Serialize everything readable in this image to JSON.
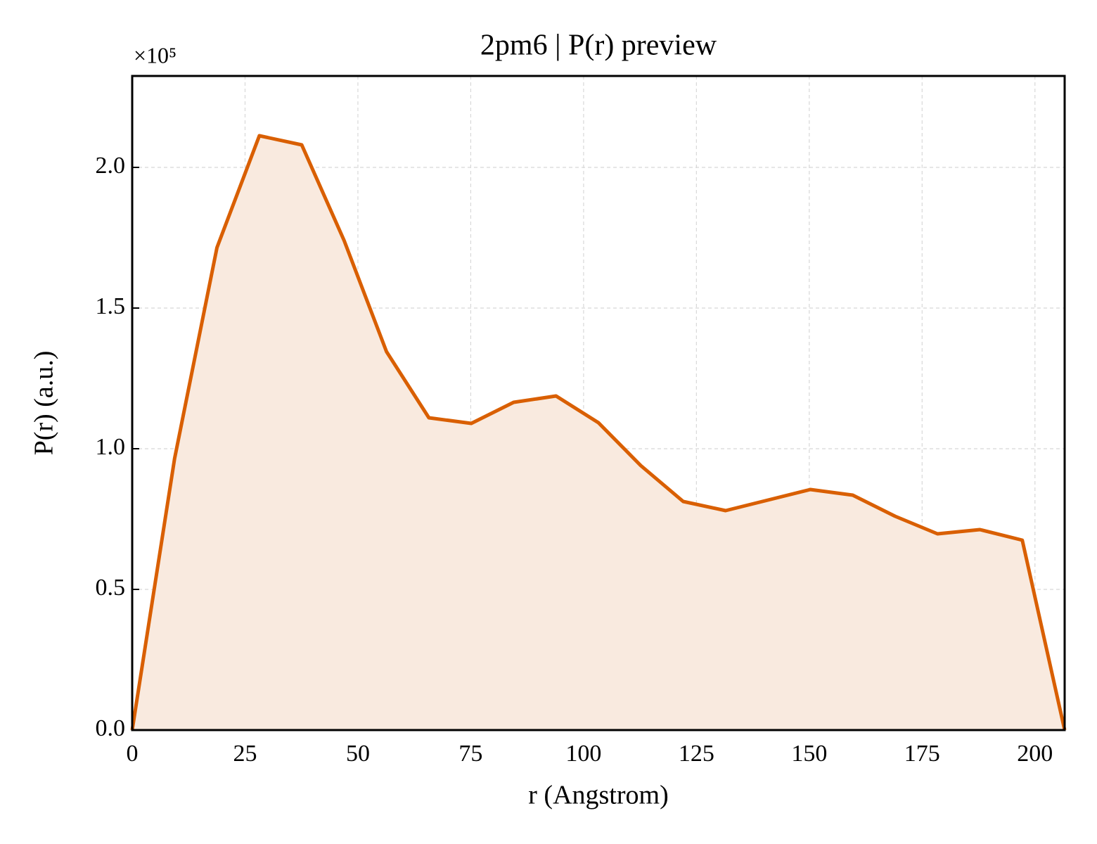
{
  "chart_data": {
    "type": "area",
    "title": "2pm6 | P(r) preview",
    "x_label": "r (Angstrom)",
    "y_label": "P(r) (a.u.)",
    "y_offset_label": "×10⁵",
    "x": [
      0,
      9.39,
      18.78,
      28.17,
      37.56,
      46.95,
      56.34,
      65.73,
      75.12,
      84.51,
      93.9,
      103.29,
      112.68,
      122.07,
      131.46,
      140.85,
      150.24,
      159.63,
      169.02,
      178.41,
      187.8,
      197.19,
      206.58
    ],
    "series": [
      {
        "name": "P(r)",
        "color": "#d95f02",
        "fill_color": "#f9eadf",
        "values": [
          0,
          0.965,
          1.715,
          2.1125,
          2.08,
          1.74,
          1.345,
          1.11,
          1.09,
          1.165,
          1.1875,
          1.0925,
          0.94,
          0.8125,
          0.78,
          0.8175,
          0.855,
          0.835,
          0.76,
          0.6975,
          0.7125,
          0.675,
          0
        ]
      }
    ],
    "xlim": [
      0,
      206.58
    ],
    "ylim": [
      0,
      2.325
    ],
    "xticks": [
      0,
      25,
      50,
      75,
      100,
      125,
      150,
      175,
      200
    ],
    "yticks": [
      {
        "value": 0,
        "label": "0.0"
      },
      {
        "value": 0.5,
        "label": "0.5"
      },
      {
        "value": 1,
        "label": "1.0"
      },
      {
        "value": 1.5,
        "label": "1.5"
      },
      {
        "value": 2,
        "label": "2.0"
      }
    ],
    "grid": true
  }
}
